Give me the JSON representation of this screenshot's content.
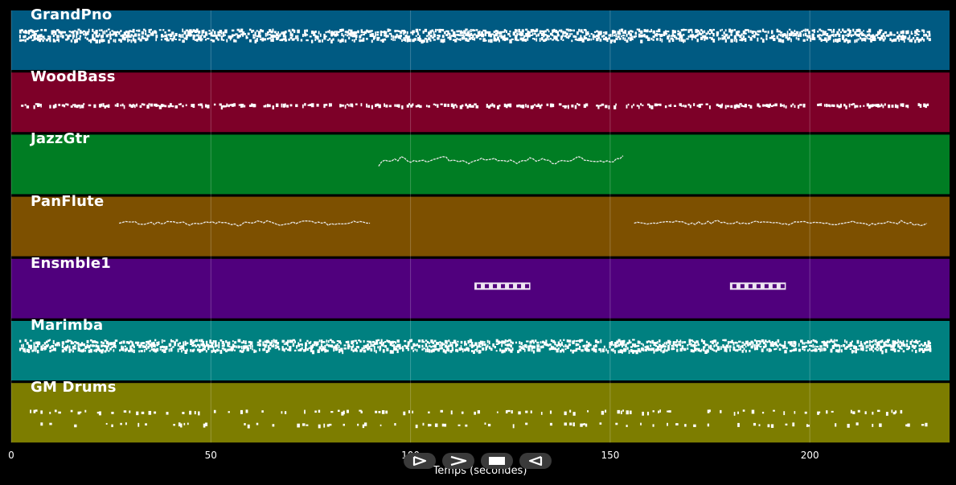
{
  "chart_data": {
    "type": "piano-roll",
    "xlabel": "Temps (secondes)",
    "xlim": [
      0,
      235
    ],
    "x_ticks": [
      0,
      50,
      100,
      150,
      200
    ],
    "grid": true,
    "tracks": [
      {
        "name": "GrandPno",
        "color": "#005a82",
        "pattern": "dense",
        "segments": [
          [
            2,
            230
          ]
        ]
      },
      {
        "name": "WoodBass",
        "color": "#7d0028",
        "pattern": "bass",
        "segments": [
          [
            2,
            230
          ]
        ]
      },
      {
        "name": "JazzGtr",
        "color": "#007d23",
        "pattern": "melody",
        "segments": [
          [
            92,
            154
          ]
        ]
      },
      {
        "name": "PanFlute",
        "color": "#7d5000",
        "pattern": "flute",
        "segments": [
          [
            27,
            90
          ],
          [
            156,
            230
          ]
        ]
      },
      {
        "name": "Ensmble1",
        "color": "#50007d",
        "pattern": "block",
        "segments": [
          [
            116,
            130
          ],
          [
            180,
            194
          ]
        ]
      },
      {
        "name": "Marimba",
        "color": "#008080",
        "pattern": "dense",
        "segments": [
          [
            2,
            26
          ],
          [
            27,
            230
          ]
        ]
      },
      {
        "name": "GM Drums",
        "color": "#7d7d00",
        "pattern": "drums",
        "segments": [
          [
            2,
            230
          ]
        ]
      }
    ]
  },
  "controls": {
    "play_icon": "play-icon",
    "forward_icon": "forward-icon",
    "stop_icon": "stop-icon",
    "rewind_icon": "rewind-icon"
  }
}
